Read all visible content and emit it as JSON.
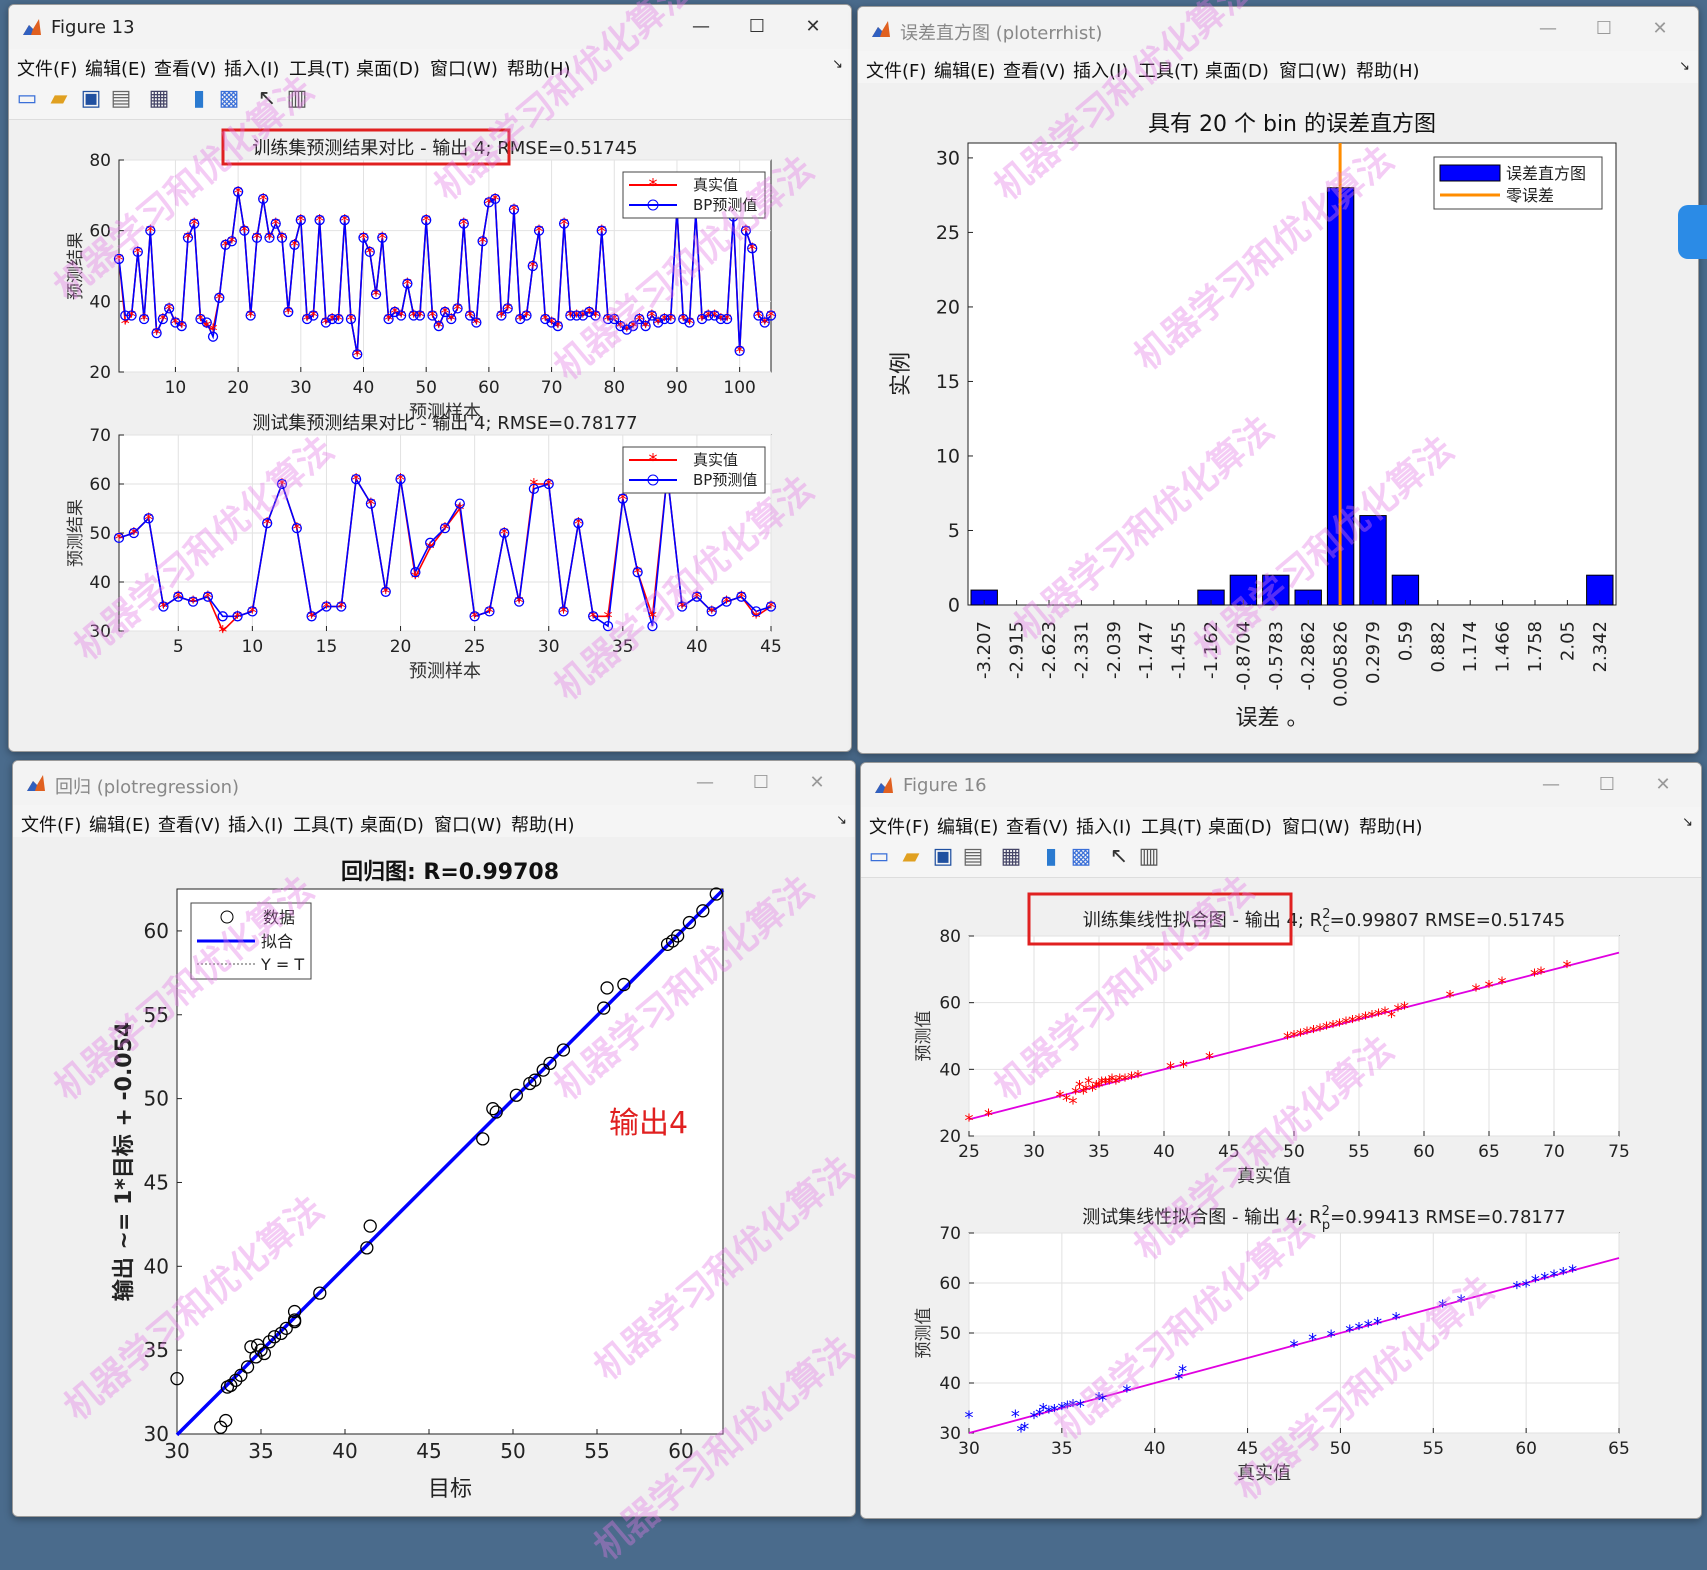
{
  "colors": {
    "red": "#ff0000",
    "blue": "#0000ff",
    "magenta": "#e000e0",
    "orange": "#ff8c00",
    "highlight": "#e02020"
  },
  "windows": {
    "fig13": {
      "title": "Figure 13"
    },
    "hist": {
      "title": "误差直方图 (ploterrhist)"
    },
    "reg": {
      "title": "回归 (plotregression)"
    },
    "fig16": {
      "title": "Figure 16"
    }
  },
  "menu": [
    "文件(F)",
    "编辑(E)",
    "查看(V)",
    "插入(I)",
    "工具(T)",
    "桌面(D)",
    "窗口(W)",
    "帮助(H)"
  ],
  "toolbar_icons": [
    "new-file-icon",
    "open-folder-icon",
    "save-icon",
    "print-icon",
    "print-preview-icon",
    "colorbar-icon",
    "legend-icon",
    "pointer-icon",
    "property-inspector-icon"
  ],
  "watermark": "机器学习和优化算法",
  "fig13": {
    "train": {
      "title": "训练集预测结果对比 - 输出 4; RMSE=0.51745",
      "xlabel": "预测样本",
      "ylabel": "预测结果",
      "xlim": [
        1,
        105
      ],
      "ylim": [
        20,
        80
      ],
      "xticks": [
        10,
        20,
        30,
        40,
        50,
        60,
        70,
        80,
        90,
        100
      ],
      "yticks": [
        20,
        40,
        60,
        80
      ],
      "legend": [
        "真实值",
        "BP预测值"
      ]
    },
    "test": {
      "title": "测试集预测结果对比 - 输出 4; RMSE=0.78177",
      "xlabel": "预测样本",
      "ylabel": "预测结果",
      "xlim": [
        1,
        45
      ],
      "ylim": [
        30,
        70
      ],
      "xticks": [
        5,
        10,
        15,
        20,
        25,
        30,
        35,
        40,
        45
      ],
      "yticks": [
        30,
        40,
        50,
        60,
        70
      ],
      "legend": [
        "真实值",
        "BP预测值"
      ]
    }
  },
  "hist": {
    "title": "具有 20 个 bin 的误差直方图",
    "xlabel": "误差 。",
    "ylabel": "实例",
    "yticks": [
      0,
      5,
      10,
      15,
      20,
      25,
      30
    ],
    "legend": [
      "误差直方图",
      "零误差"
    ]
  },
  "reg": {
    "title": "回归图: R=0.99708",
    "xlabel": "目标",
    "ylabel": "输出 ~= 1*目标 + -0.054",
    "xticks": [
      30,
      35,
      40,
      45,
      50,
      55,
      60
    ],
    "yticks": [
      30,
      35,
      40,
      45,
      50,
      55,
      60
    ],
    "legend": [
      "数据",
      "拟合",
      "Y = T"
    ],
    "annotation": "输出4"
  },
  "fig16": {
    "train": {
      "title_prefix": "训练集线性拟合图 - 输出 4; R",
      "title_sup": "2",
      "title_sub": "c",
      "title_suffix": "=0.99807  RMSE=0.51745",
      "xlabel": "真实值",
      "ylabel": "预测值",
      "xticks": [
        25,
        30,
        35,
        40,
        45,
        50,
        55,
        60,
        65,
        70,
        75
      ],
      "yticks": [
        20,
        40,
        60,
        80
      ]
    },
    "test": {
      "title_prefix": "测试集线性拟合图 - 输出 4; R",
      "title_sup": "2",
      "title_sub": "p",
      "title_suffix": "=0.99413  RMSE=0.78177",
      "xlabel": "真实值",
      "ylabel": "预测值",
      "xticks": [
        30,
        35,
        40,
        45,
        50,
        55,
        60,
        65
      ],
      "yticks": [
        30,
        40,
        50,
        60,
        70
      ]
    }
  },
  "chart_data": [
    {
      "type": "line",
      "title": "训练集预测结果对比 - 输出 4; RMSE=0.51745",
      "xlabel": "预测样本",
      "ylabel": "预测结果",
      "xlim": [
        1,
        105
      ],
      "ylim": [
        20,
        80
      ],
      "series": [
        {
          "name": "真实值",
          "values": [
            52,
            34,
            36,
            54,
            35,
            60,
            31,
            35,
            38,
            34,
            33,
            58,
            62,
            35,
            33,
            32,
            41,
            56,
            57,
            71,
            60,
            36,
            58,
            69,
            58,
            62,
            58,
            37,
            56,
            63,
            35,
            36,
            63,
            34,
            35,
            35,
            63,
            35,
            25,
            58,
            54,
            42,
            58,
            35,
            37,
            36,
            45,
            36,
            36,
            63,
            36,
            33,
            37,
            35,
            38,
            62,
            36,
            34,
            57,
            68,
            69,
            36,
            38,
            66,
            35,
            36,
            50,
            60,
            35,
            34,
            33,
            62,
            36,
            36,
            36,
            37,
            36,
            60,
            35,
            35,
            33,
            32,
            33,
            35,
            33,
            36,
            34,
            35,
            35,
            66,
            35,
            34,
            65,
            35,
            36,
            36,
            35,
            35,
            64,
            26,
            60,
            55,
            36,
            34,
            36
          ]
        },
        {
          "name": "BP预测值",
          "values": [
            52,
            36,
            36,
            54,
            35,
            60,
            31,
            35,
            38,
            34,
            33,
            58,
            62,
            35,
            34,
            30,
            41,
            56,
            57,
            71,
            60,
            36,
            58,
            69,
            58,
            62,
            58,
            37,
            56,
            63,
            35,
            36,
            63,
            34,
            35,
            35,
            63,
            35,
            25,
            58,
            54,
            42,
            58,
            35,
            37,
            36,
            45,
            36,
            36,
            63,
            36,
            33,
            37,
            35,
            38,
            62,
            36,
            34,
            57,
            68,
            69,
            36,
            38,
            66,
            35,
            36,
            50,
            60,
            35,
            34,
            33,
            62,
            36,
            36,
            36,
            37,
            36,
            60,
            35,
            35,
            33,
            32,
            33,
            35,
            33,
            36,
            34,
            35,
            35,
            66,
            35,
            34,
            65,
            35,
            36,
            36,
            35,
            35,
            64,
            26,
            60,
            55,
            36,
            34,
            36
          ]
        }
      ]
    },
    {
      "type": "line",
      "title": "测试集预测结果对比 - 输出 4; RMSE=0.78177",
      "xlabel": "预测样本",
      "ylabel": "预测结果",
      "xlim": [
        1,
        45
      ],
      "ylim": [
        30,
        70
      ],
      "series": [
        {
          "name": "真实值",
          "values": [
            49,
            50,
            53,
            35,
            37,
            36,
            37,
            30,
            33,
            34,
            52,
            60,
            51,
            33,
            35,
            35,
            61,
            56,
            38,
            61,
            41,
            47,
            51,
            55,
            33,
            34,
            50,
            36,
            60,
            60,
            34,
            52,
            33,
            33,
            57,
            42,
            33,
            62,
            35,
            37,
            34,
            36,
            37,
            33,
            35
          ]
        },
        {
          "name": "BP预测值",
          "values": [
            49,
            50,
            53,
            35,
            37,
            36,
            37,
            33,
            33,
            34,
            52,
            60,
            51,
            33,
            35,
            35,
            61,
            56,
            38,
            61,
            42,
            48,
            51,
            56,
            33,
            34,
            50,
            36,
            59,
            60,
            34,
            52,
            33,
            31,
            57,
            42,
            31,
            62,
            35,
            37,
            34,
            36,
            37,
            34,
            35
          ]
        }
      ]
    },
    {
      "type": "bar",
      "title": "具有 20 个 bin 的误差直方图",
      "xlabel": "误差 。",
      "ylabel": "实例",
      "ylim": [
        0,
        31
      ],
      "categories": [
        "-3.207",
        "-2.915",
        "-2.623",
        "-2.331",
        "-2.039",
        "-1.747",
        "-1.455",
        "-1.162",
        "-0.8704",
        "-0.5783",
        "-0.2862",
        "0.005826",
        "0.2979",
        "0.59",
        "0.882",
        "1.174",
        "1.466",
        "1.758",
        "2.05",
        "2.342"
      ],
      "series": [
        {
          "name": "误差直方图",
          "values": [
            1,
            0,
            0,
            0,
            0,
            0,
            0,
            1,
            2,
            2,
            1,
            28,
            6,
            2,
            0,
            0,
            0,
            0,
            0,
            2
          ]
        }
      ],
      "zero_error": 0.005826
    },
    {
      "type": "scatter",
      "title": "回归图: R=0.99708",
      "xlabel": "目标",
      "ylabel": "输出 ~= 1*目标 + -0.054",
      "xlim": [
        30,
        62.5
      ],
      "ylim": [
        30,
        62.5
      ],
      "series": [
        {
          "name": "数据",
          "x": [
            30,
            32.6,
            32.9,
            33.0,
            33.5,
            33.8,
            34.2,
            34.4,
            34.7,
            35.0,
            35.2,
            35.5,
            35.8,
            36.2,
            37.0,
            37.0,
            37.0,
            38.5,
            41.3,
            41.5,
            48.2,
            48.8,
            49.0,
            50.2,
            51.0,
            51.3,
            51.8,
            52.2,
            53.0,
            55.4,
            55.6,
            56.6,
            59.2,
            59.5,
            59.8,
            60.5,
            61.3,
            62.1,
            33.2,
            34.8,
            36.5
          ],
          "y": [
            33.3,
            30.4,
            30.8,
            32.8,
            33.2,
            33.5,
            34.0,
            35.2,
            34.6,
            35.0,
            34.8,
            35.5,
            35.8,
            36.0,
            36.7,
            37.3,
            36.8,
            38.4,
            41.1,
            42.4,
            47.6,
            49.4,
            49.2,
            50.2,
            50.9,
            51.1,
            51.7,
            52.1,
            52.9,
            55.4,
            56.6,
            56.8,
            59.2,
            59.4,
            59.7,
            60.5,
            61.2,
            62.2,
            32.9,
            35.3,
            36.3
          ]
        }
      ],
      "fit": {
        "slope": 1,
        "intercept": -0.054
      }
    },
    {
      "type": "scatter",
      "title": "训练集线性拟合图 - 输出 4; R2c=0.99807  RMSE=0.51745",
      "xlabel": "真实值",
      "ylabel": "预测值",
      "xlim": [
        25,
        75
      ],
      "ylim": [
        20,
        80
      ],
      "series": [
        {
          "name": "",
          "x": [
            25,
            26.5,
            32,
            32.5,
            33,
            33.2,
            33.5,
            33.8,
            34,
            34.2,
            34.5,
            34.8,
            35,
            35.2,
            35.5,
            35.8,
            36,
            36.3,
            36.6,
            37,
            37.5,
            38,
            40.5,
            41.5,
            43.5,
            49.5,
            50,
            50.5,
            51,
            51.5,
            52,
            52.5,
            53,
            53.5,
            54,
            54.5,
            55,
            55.5,
            56,
            56.5,
            57,
            57.5,
            58,
            58.5,
            62,
            64,
            65,
            66,
            68.5,
            69,
            71
          ],
          "y": [
            25,
            26.5,
            32,
            31,
            30,
            33,
            35,
            33,
            34,
            36,
            34,
            35,
            35,
            36,
            36,
            36,
            37,
            36,
            37,
            37,
            37.5,
            38,
            40.5,
            41,
            43.5,
            49.5,
            50,
            50.5,
            51,
            51.5,
            52,
            52.5,
            53,
            53.5,
            54,
            54.5,
            55,
            55.5,
            56,
            56.5,
            57,
            56,
            58,
            58.5,
            62,
            64,
            65,
            66,
            68.5,
            69,
            71
          ]
        }
      ],
      "fit": {
        "slope": 1,
        "intercept": 0
      }
    },
    {
      "type": "scatter",
      "title": "测试集线性拟合图 - 输出 4; R2p=0.99413  RMSE=0.78177",
      "xlabel": "真实值",
      "ylabel": "预测值",
      "xlim": [
        30,
        65
      ],
      "ylim": [
        30,
        70
      ],
      "series": [
        {
          "name": "",
          "x": [
            30,
            32.5,
            32.8,
            33,
            33.5,
            33.8,
            34,
            34.3,
            34.6,
            35,
            35.3,
            35.6,
            36,
            37,
            37.2,
            38.5,
            41.3,
            41.5,
            47.5,
            48.5,
            49.5,
            50.5,
            51,
            51.5,
            52,
            53,
            55.5,
            56.5,
            59.5,
            60,
            60.5,
            61,
            61.5,
            62,
            62.5
          ],
          "y": [
            33.3,
            33.5,
            30.5,
            31,
            33.2,
            33.8,
            34.8,
            34.3,
            34.6,
            35,
            35.3,
            35.6,
            35.5,
            37,
            36.7,
            38.5,
            41,
            42.5,
            47.5,
            48.8,
            49.5,
            50.5,
            51,
            51.5,
            52,
            53,
            55.5,
            56.5,
            59.2,
            59.5,
            60.5,
            61,
            61.5,
            62,
            62.5
          ]
        }
      ],
      "fit": {
        "slope": 1,
        "intercept": 0
      }
    }
  ]
}
